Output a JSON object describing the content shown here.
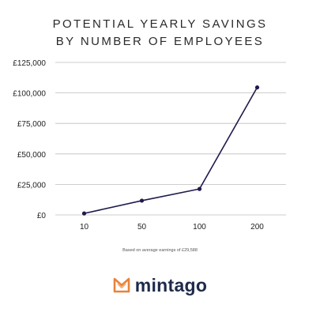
{
  "chart_data": {
    "type": "line",
    "title_lines": [
      "POTENTIAL YEARLY SAVINGS",
      "BY NUMBER OF EMPLOYEES"
    ],
    "categories": [
      "10",
      "50",
      "100",
      "200"
    ],
    "series": [
      {
        "values": [
          1200,
          11700,
          21300,
          104500
        ]
      }
    ],
    "y_ticks": [
      0,
      25000,
      50000,
      75000,
      100000,
      125000
    ],
    "y_tick_labels": [
      "£0",
      "£25,000",
      "£50,000",
      "£75,000",
      "£100,000",
      "£125,000"
    ],
    "ylim": [
      0,
      125000
    ],
    "grid": true,
    "line_color": "#1e1b4b",
    "footnote": "Based on average earnings of £29,588"
  },
  "brand": {
    "name": "mintago",
    "logo_colors": {
      "primary": "#e8833a",
      "secondary": "#f2b07a"
    }
  }
}
